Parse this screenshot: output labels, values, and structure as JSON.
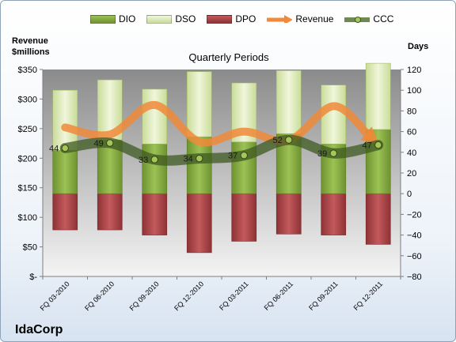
{
  "company": "IdaCorp",
  "left_axis_title": "Revenue $millions",
  "right_axis_title": "Days",
  "plot_title": "Quarterly Periods",
  "legend": [
    {
      "label": "DIO",
      "color": "#7ea33a"
    },
    {
      "label": "DSO",
      "color": "#dbe8b6"
    },
    {
      "label": "DPO",
      "color": "#b0474a"
    },
    {
      "label": "Revenue",
      "color": "#f08a3a"
    },
    {
      "label": "CCC",
      "color": "#4d6b2a"
    }
  ],
  "chart_data": {
    "type": "bar",
    "title": "Quarterly Periods",
    "categories": [
      "FQ 03-2010",
      "FQ 06-2010",
      "FQ 09-2010",
      "FQ 12-2010",
      "FQ 03-2011",
      "FQ 06-2011",
      "FQ 09-2011",
      "FQ 12-2011"
    ],
    "left_axis": {
      "label": "Revenue $millions",
      "ylim": [
        0,
        350
      ],
      "ticks": [
        0,
        50,
        100,
        150,
        200,
        250,
        300,
        350
      ],
      "tick_labels": [
        "$-",
        "$50",
        "$100",
        "$150",
        "$200",
        "$250",
        "$300",
        "$350"
      ]
    },
    "right_axis": {
      "label": "Days",
      "ylim": [
        -80,
        120
      ],
      "ticks": [
        -80,
        -60,
        -40,
        -20,
        0,
        20,
        40,
        60,
        80,
        100,
        120
      ]
    },
    "series": [
      {
        "name": "DPO",
        "type": "stacked-bar-negative",
        "axis": "days",
        "values": [
          -35,
          -35,
          -40,
          -57,
          -46,
          -39,
          -40,
          -49
        ]
      },
      {
        "name": "DIO",
        "type": "stacked-bar",
        "axis": "days",
        "values": [
          42,
          52,
          48,
          55,
          50,
          58,
          48,
          62
        ]
      },
      {
        "name": "DSO",
        "type": "stacked-bar",
        "axis": "days",
        "values": [
          58,
          58,
          53,
          63,
          57,
          61,
          57,
          64
        ]
      },
      {
        "name": "Revenue",
        "type": "line",
        "axis": "left",
        "values": [
          252,
          240,
          290,
          228,
          245,
          230,
          288,
          225
        ]
      },
      {
        "name": "CCC",
        "type": "line",
        "axis": "days",
        "values": [
          44,
          49,
          33,
          34,
          37,
          52,
          39,
          47
        ]
      }
    ],
    "ccc_labels": [
      "44",
      "49",
      "33",
      "34",
      "37",
      "52",
      "39",
      "47"
    ],
    "grid": false,
    "legend_position": "top"
  }
}
